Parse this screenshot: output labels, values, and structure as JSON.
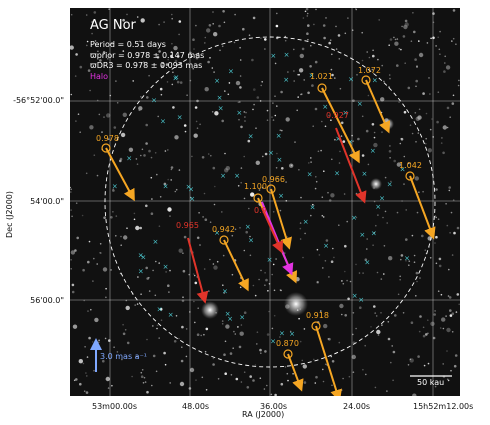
{
  "info": {
    "title": "AG Nor",
    "period": "Period =   0.51 days",
    "omega_prior": "ϖprior = 0.978 ± 0.147 mas",
    "omega_dr3": "ϖDR3 = 0.978 ± 0.093 mas",
    "legend": "Halo"
  },
  "axes": {
    "y_title": "Dec (J2000)",
    "x_title": "RA (J2000)",
    "y_ticks": [
      "-56°52'00.0\"",
      "54'00.0\"",
      "56'00.0\""
    ],
    "x_ticks": [
      "53m00.00s",
      "48.00s",
      "36.00s",
      "24.00s",
      "15h52m12.00s"
    ]
  },
  "scale_arrow_label": "3.0 mas a⁻¹",
  "scalebar_label": "50 kau",
  "parallax_labels": [
    {
      "text": "0.978",
      "color": "#f5a623"
    },
    {
      "text": "1.021",
      "color": "#f5a623"
    },
    {
      "text": "1.072",
      "color": "#f5a623"
    },
    {
      "text": "0.927",
      "color": "#e0342a"
    },
    {
      "text": "1.042",
      "color": "#f5a623"
    },
    {
      "text": "0.966",
      "color": "#f5a623"
    },
    {
      "text": "1.100",
      "color": "#f5a623"
    },
    {
      "text": "0.9",
      "color": "#e0342a"
    },
    {
      "text": "0.965",
      "color": "#e0342a"
    },
    {
      "text": "0.942",
      "color": "#f5a623"
    },
    {
      "text": "0.918",
      "color": "#f5a623"
    },
    {
      "text": "0.870",
      "color": "#f5a623"
    }
  ],
  "colors": {
    "accent_orange": "#f5a623",
    "accent_red": "#e0342a",
    "halo": "#e233e2",
    "candidates": "#4fd1d9",
    "proper_motion": "#7fa8ff"
  }
}
